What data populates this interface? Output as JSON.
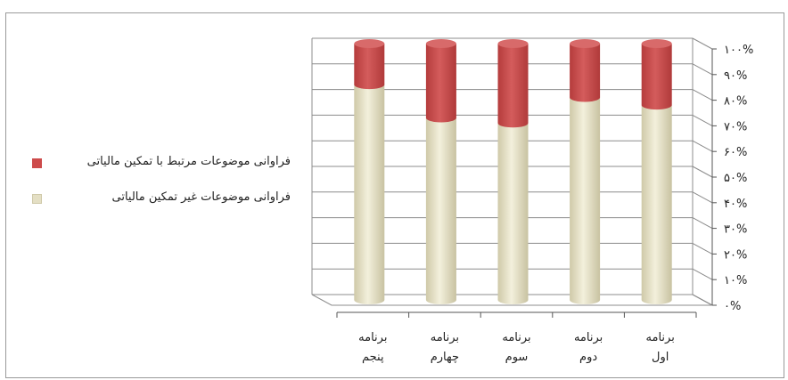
{
  "chart_data": {
    "type": "bar",
    "stacked": true,
    "percent": true,
    "categories": [
      [
        "برنامه",
        "پنجم"
      ],
      [
        "برنامه",
        "چهارم"
      ],
      [
        "برنامه",
        "سوم"
      ],
      [
        "برنامه",
        "دوم"
      ],
      [
        "برنامه",
        "اول"
      ]
    ],
    "series": [
      {
        "name": "فراوانی موضوعات غیر تمکین مالیاتی",
        "color": "#e4dfc4",
        "values": [
          84,
          71,
          69,
          79,
          76
        ]
      },
      {
        "name": "فراوانی موضوعات مرتبط با تمکین مالیاتی",
        "color": "#cd4b4b",
        "values": [
          16,
          29,
          31,
          21,
          24
        ]
      }
    ],
    "yticks": [
      "۰%",
      "۱۰%",
      "۲۰%",
      "۳۰%",
      "۴۰%",
      "۵۰%",
      "۶۰%",
      "۷۰%",
      "۸۰%",
      "۹۰%",
      "۱۰۰%"
    ],
    "ylim": [
      0,
      100
    ],
    "grid": true,
    "legend_position": "left",
    "title": "",
    "xlabel": "",
    "ylabel": ""
  },
  "legend": {
    "items": [
      {
        "label": "فراوانی موضوعات مرتبط با تمکین مالیاتی",
        "color": "#cd4b4b"
      },
      {
        "label": "فراوانی موضوعات غیر تمکین مالیاتی",
        "color": "#e4dfc4"
      }
    ]
  }
}
